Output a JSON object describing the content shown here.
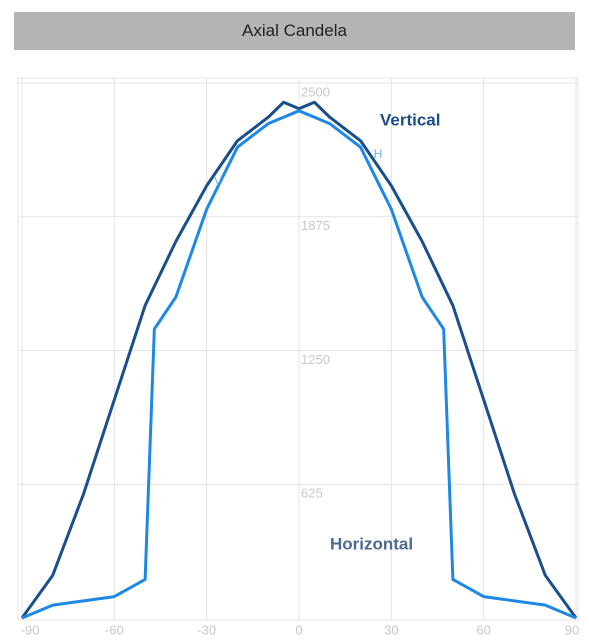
{
  "chart_data": {
    "type": "line",
    "title": "Axial Candela",
    "xlim": [
      -90,
      90
    ],
    "xticks": [
      -90,
      -60,
      -30,
      0,
      30,
      60,
      90
    ],
    "ylim": [
      0,
      2500
    ],
    "yticks": [
      625,
      1250,
      1875,
      2500
    ],
    "grid": true,
    "series": [
      {
        "name": "Vertical",
        "color": "#1a4f8a",
        "x": [
          -90,
          -80,
          -70,
          -60,
          -50,
          -40,
          -30,
          -20,
          -10,
          -5,
          0,
          5,
          10,
          20,
          30,
          40,
          50,
          60,
          70,
          80,
          90
        ],
        "values": [
          0,
          200,
          580,
          1020,
          1460,
          1760,
          2020,
          2230,
          2340,
          2410,
          2380,
          2410,
          2340,
          2230,
          2020,
          1760,
          1460,
          1020,
          580,
          200,
          0
        ]
      },
      {
        "name": "Horizontal",
        "color": "#1e88e5",
        "x": [
          -90,
          -80,
          -60,
          -50,
          -47,
          -40,
          -30,
          -20,
          -10,
          0,
          10,
          20,
          30,
          40,
          47,
          50,
          60,
          80,
          90
        ],
        "values": [
          0,
          60,
          100,
          180,
          1350,
          1500,
          1910,
          2200,
          2310,
          2370,
          2310,
          2200,
          1910,
          1500,
          1350,
          180,
          100,
          60,
          0
        ]
      }
    ],
    "annotations": [
      "V",
      "H"
    ]
  }
}
